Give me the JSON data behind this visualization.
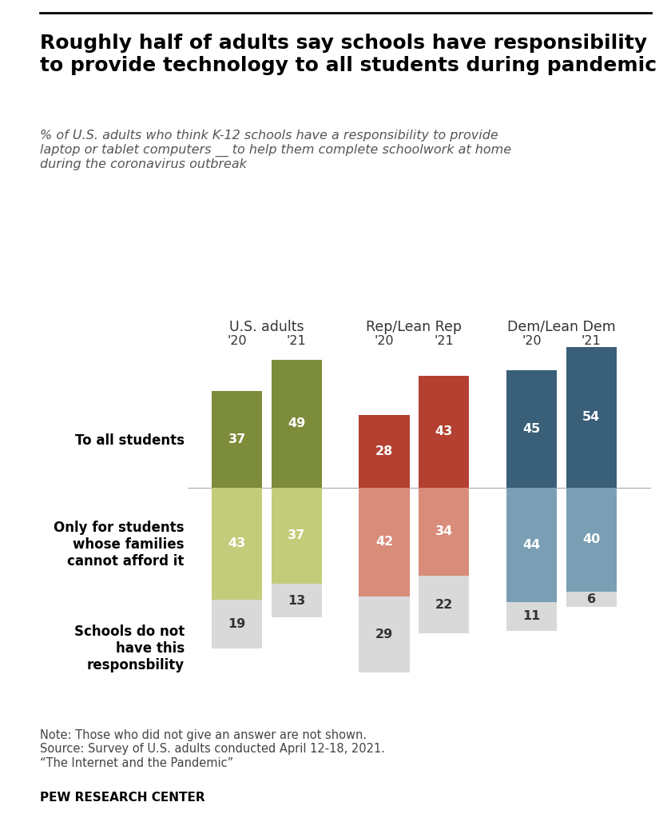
{
  "title": "Roughly half of adults say schools have responsibility\nto provide technology to all students during pandemic",
  "subtitle": "% of U.S. adults who think K-12 schools have a responsibility to provide\nlaptop or tablet computers __ to help them complete schoolwork at home\nduring the coronavirus outbreak",
  "groups": [
    "U.S. adults",
    "Rep/Lean Rep",
    "Dem/Lean Dem"
  ],
  "years": [
    "'20",
    "'21"
  ],
  "segments": [
    "To all students",
    "Only for students\nwhose families\ncannot afford it",
    "Schools do not\nhave this\nresponsbility"
  ],
  "data": {
    "us_adults": {
      "20": [
        37,
        43,
        19
      ],
      "21": [
        49,
        37,
        13
      ]
    },
    "rep": {
      "20": [
        28,
        42,
        29
      ],
      "21": [
        43,
        34,
        22
      ]
    },
    "dem": {
      "20": [
        45,
        44,
        11
      ],
      "21": [
        54,
        40,
        6
      ]
    }
  },
  "colors": {
    "us_adults_dark": "#7d8c3a",
    "us_adults_mid": "#c2cc7a",
    "rep_dark": "#b34030",
    "rep_mid": "#d98c7a",
    "dem_dark": "#3a5f78",
    "dem_mid": "#7a9fb5",
    "no_resp": "#d9d9d9"
  },
  "note": "Note: Those who did not give an answer are not shown.\nSource: Survey of U.S. adults conducted April 12-18, 2021.\n“The Internet and the Pandemic”",
  "source_label": "PEW RESEARCH CENTER",
  "bg_color": "#ffffff",
  "title_color": "#000000",
  "subtitle_color": "#555555"
}
